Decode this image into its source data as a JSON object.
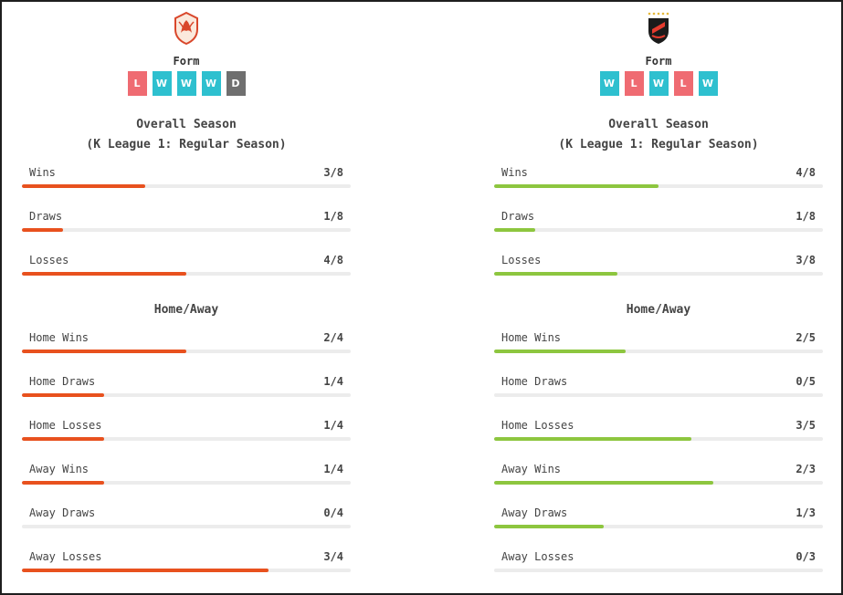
{
  "teams": [
    {
      "side": "left",
      "logo_icon": "red-phoenix-crest-icon",
      "form_label": "Form",
      "form": [
        "L",
        "W",
        "W",
        "W",
        "D"
      ],
      "overall_title": "Overall Season",
      "overall_subtitle": "(K League 1: Regular Season)",
      "overall_stats": [
        {
          "label": "Wins",
          "value": "3/8",
          "fraction": 0.375
        },
        {
          "label": "Draws",
          "value": "1/8",
          "fraction": 0.125
        },
        {
          "label": "Losses",
          "value": "4/8",
          "fraction": 0.5
        }
      ],
      "home_away_title": "Home/Away",
      "home_away_stats": [
        {
          "label": "Home Wins",
          "value": "2/4",
          "fraction": 0.5
        },
        {
          "label": "Home Draws",
          "value": "1/4",
          "fraction": 0.25
        },
        {
          "label": "Home Losses",
          "value": "1/4",
          "fraction": 0.25
        },
        {
          "label": "Away Wins",
          "value": "1/4",
          "fraction": 0.25
        },
        {
          "label": "Away Draws",
          "value": "0/4",
          "fraction": 0
        },
        {
          "label": "Away Losses",
          "value": "3/4",
          "fraction": 0.75
        }
      ]
    },
    {
      "side": "right",
      "logo_icon": "black-red-shield-crest-icon",
      "form_label": "Form",
      "form": [
        "W",
        "L",
        "W",
        "L",
        "W"
      ],
      "overall_title": "Overall Season",
      "overall_subtitle": "(K League 1: Regular Season)",
      "overall_stats": [
        {
          "label": "Wins",
          "value": "4/8",
          "fraction": 0.5
        },
        {
          "label": "Draws",
          "value": "1/8",
          "fraction": 0.125
        },
        {
          "label": "Losses",
          "value": "3/8",
          "fraction": 0.375
        }
      ],
      "home_away_title": "Home/Away",
      "home_away_stats": [
        {
          "label": "Home Wins",
          "value": "2/5",
          "fraction": 0.4
        },
        {
          "label": "Home Draws",
          "value": "0/5",
          "fraction": 0
        },
        {
          "label": "Home Losses",
          "value": "3/5",
          "fraction": 0.6
        },
        {
          "label": "Away Wins",
          "value": "2/3",
          "fraction": 0.667
        },
        {
          "label": "Away Draws",
          "value": "1/3",
          "fraction": 0.333
        },
        {
          "label": "Away Losses",
          "value": "0/3",
          "fraction": 0
        }
      ]
    }
  ],
  "colors": {
    "left_bar": "#e8511e",
    "right_bar": "#8dc63f",
    "form_win": "#2ec0cf",
    "form_loss": "#ef6b72",
    "form_draw": "#6f6f6f",
    "track": "#ececec"
  }
}
